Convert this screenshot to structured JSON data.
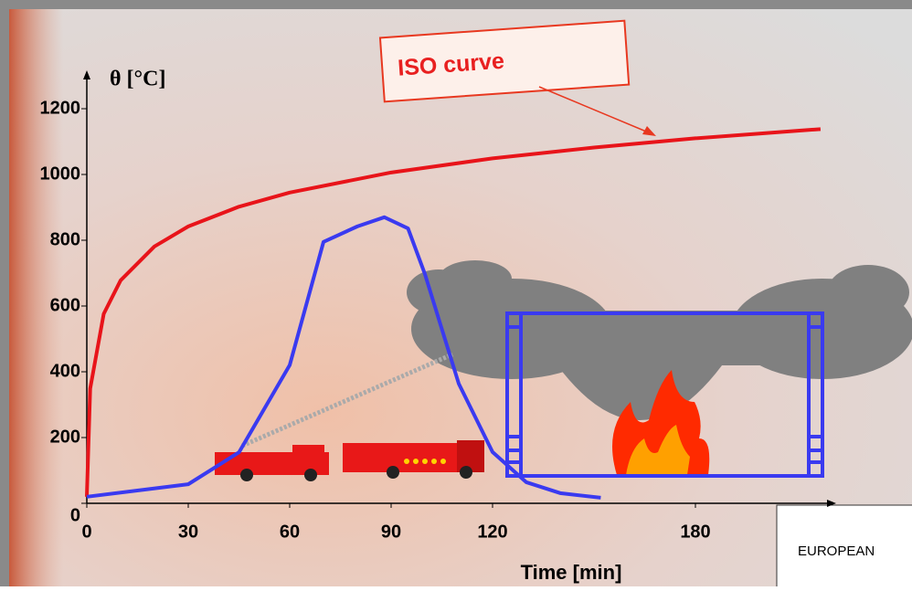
{
  "chart_data": {
    "type": "line",
    "annotation": "ISO curve",
    "ylabel": "θ [°C]",
    "xlabel": "Time [min]",
    "footer_text": "EUROPEAN",
    "xlim": [
      0,
      220
    ],
    "ylim": [
      0,
      1300
    ],
    "xticks": [
      0,
      30,
      60,
      90,
      120,
      180
    ],
    "yticks": [
      0,
      200,
      400,
      600,
      800,
      1000,
      1200
    ],
    "series": [
      {
        "color": "#e8141a",
        "x": [
          0,
          1,
          5,
          10,
          20,
          30,
          45,
          60,
          90,
          120,
          150,
          180,
          217
        ],
        "values": [
          20,
          349,
          576,
          678,
          781,
          842,
          902,
          945,
          1006,
          1049,
          1082,
          1110,
          1138
        ]
      },
      {
        "color": "#3a3af0",
        "x": [
          0,
          30,
          45,
          60,
          70,
          80,
          88,
          95,
          100,
          105,
          110,
          120,
          130,
          140,
          152
        ],
        "values": [
          20,
          58,
          155,
          420,
          795,
          842,
          870,
          836,
          697,
          530,
          364,
          156,
          64,
          31,
          17
        ]
      }
    ]
  }
}
